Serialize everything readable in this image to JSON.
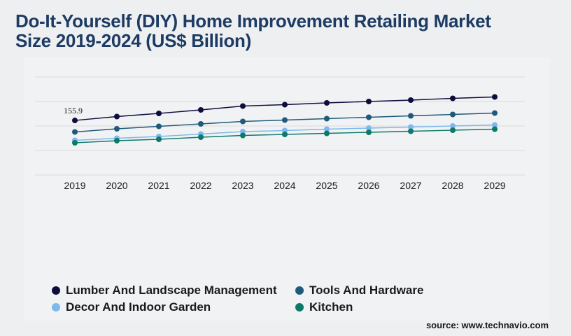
{
  "title_line1": "Do-It-Yourself (DIY) Home Improvement Retailing Market",
  "title_line2": "Size 2019-2024 (US$ Billion)",
  "source": "source: www.technavio.com",
  "chart_data": {
    "type": "line",
    "x": [
      "2019",
      "2020",
      "2021",
      "2022",
      "2023",
      "2024",
      "2025",
      "2026",
      "2027",
      "2028",
      "2029"
    ],
    "ylim": [
      0,
      280
    ],
    "grid": true,
    "legend_position": "bottom-left",
    "annotations": [
      {
        "series": "Lumber And Landscape Management",
        "x": "2019",
        "text": "155.9"
      }
    ],
    "series": [
      {
        "name": "Lumber And Landscape Management",
        "color": "#0e0c3d",
        "values": [
          155.9,
          167,
          176,
          186,
          197,
          201,
          206,
          210,
          214,
          219,
          223
        ]
      },
      {
        "name": "Tools And Hardware",
        "color": "#1f5a7a",
        "values": [
          123,
          132,
          139,
          146,
          153,
          157,
          161,
          165,
          169,
          173,
          177
        ]
      },
      {
        "name": "Decor And Indoor Garden",
        "color": "#7db8ee",
        "values": [
          99,
          105,
          110,
          117,
          124,
          127,
          131,
          134,
          137,
          140,
          143
        ]
      },
      {
        "name": "Kitchen",
        "color": "#0d7a68",
        "values": [
          92,
          98,
          102,
          108,
          113,
          116,
          119,
          122,
          125,
          128,
          131
        ]
      }
    ]
  }
}
